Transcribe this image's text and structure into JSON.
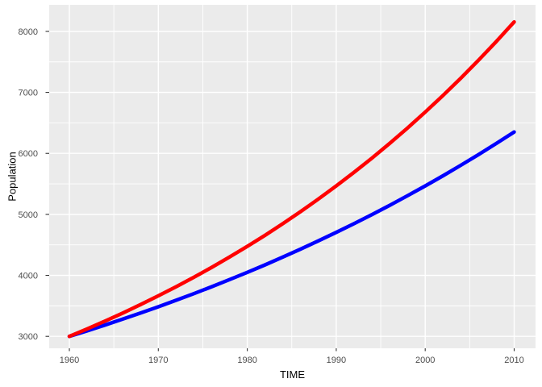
{
  "figure": {
    "background": "#FFFFFF",
    "panel_background": "#EBEBEB",
    "grid_color": "#FFFFFF",
    "tick_mark_color": "#333333",
    "tick_label_color": "#4D4D4D",
    "axis_title_color": "#000000"
  },
  "chart_data": {
    "type": "line",
    "title": "",
    "xlabel": "TIME",
    "ylabel": "Population",
    "legend_position": "none",
    "grid": "major-and-minor",
    "xlim": [
      1957.5,
      2012.5
    ],
    "ylim": [
      2800,
      8435
    ],
    "x_ticks": [
      1960,
      1970,
      1980,
      1990,
      2000,
      2010
    ],
    "x_tick_labels": [
      "1960",
      "1970",
      "1980",
      "1990",
      "2000",
      "2010"
    ],
    "x_minor_ticks": [
      1965,
      1975,
      1985,
      1995,
      2005
    ],
    "y_ticks": [
      3000,
      4000,
      5000,
      6000,
      7000,
      8000
    ],
    "y_tick_labels": [
      "3000",
      "4000",
      "5000",
      "6000",
      "7000",
      "8000"
    ],
    "y_minor_ticks": [
      3500,
      4500,
      5500,
      6500,
      7500
    ],
    "x": [
      1960,
      1962,
      1964,
      1966,
      1968,
      1970,
      1972,
      1974,
      1976,
      1978,
      1980,
      1982,
      1984,
      1986,
      1988,
      1990,
      1992,
      1994,
      1996,
      1998,
      2000,
      2002,
      2004,
      2006,
      2008,
      2010
    ],
    "series": [
      {
        "name": "blue",
        "color": "#0000FF",
        "line_width": 4.5,
        "values": [
          3000.0,
          3091.4,
          3185.5,
          3282.5,
          3382.5,
          3485.5,
          3591.7,
          3701.0,
          3813.7,
          3929.9,
          4049.6,
          4172.9,
          4300.0,
          4430.9,
          4565.9,
          4704.9,
          4848.2,
          4995.9,
          5148.0,
          5304.8,
          5466.4,
          5632.8,
          5804.4,
          5981.1,
          6163.3,
          6351.0
        ]
      },
      {
        "name": "red",
        "color": "#FF0000",
        "line_width": 4.5,
        "values": [
          3000.0,
          3122.4,
          3249.9,
          3382.5,
          3520.5,
          3664.2,
          3813.7,
          3969.4,
          4131.4,
          4300.0,
          4475.5,
          4658.1,
          4848.2,
          5046.1,
          5252.0,
          5466.4,
          5689.4,
          5921.6,
          6163.3,
          6414.8,
          6676.6,
          6949.1,
          7232.7,
          7527.9,
          7835.1,
          8154.8
        ]
      }
    ]
  }
}
